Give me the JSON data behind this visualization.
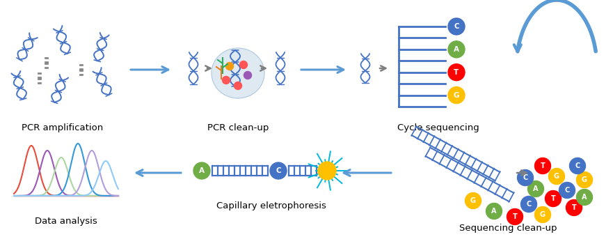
{
  "bg_color": "#ffffff",
  "labels": {
    "pcr_amp": "PCR amplification",
    "pcr_clean": "PCR clean-up",
    "cycle_seq": "Cycle sequencing",
    "seq_clean": "Sequencing clean-up",
    "cap_elec": "Capillary eletrophoresis",
    "data_anal": "Data analysis"
  },
  "dna_color": "#4472c4",
  "arrow_color": "#5b9bd5",
  "gray_arrow_color": "#7f7f7f",
  "nucleotide_colors": {
    "C": "#4472c4",
    "A": "#70ad47",
    "T": "#ff0000",
    "G": "#ffc000"
  },
  "chromatogram_colors": [
    "#e74c3c",
    "#9b59b6",
    "#aed6a0",
    "#3498db",
    "#b39ddb",
    "#90caf9"
  ],
  "label_fontsize": 9.5,
  "teardrop_color": "#c5d8e8",
  "teardrop_alpha": 0.55
}
